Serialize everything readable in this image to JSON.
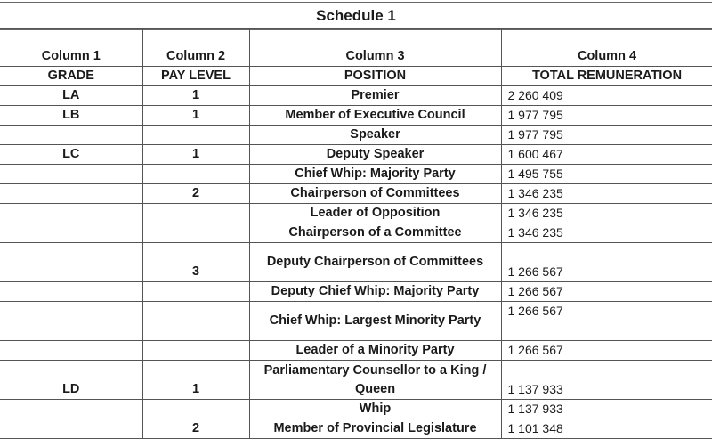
{
  "title": "Schedule 1",
  "headers": {
    "columns": [
      "Column 1",
      "Column 2",
      "Column 3",
      "Column 4"
    ],
    "labels": [
      "GRADE",
      "PAY LEVEL",
      "POSITION",
      "TOTAL REMUNERATION"
    ]
  },
  "rows": [
    {
      "grade": "LA",
      "pay_level": "1",
      "position": "Premier",
      "remuneration": "2 260  409"
    },
    {
      "grade": "LB",
      "pay_level": "1",
      "position": "Member of Executive Council",
      "remuneration": "1 977 795"
    },
    {
      "grade": "",
      "pay_level": "",
      "position": "Speaker",
      "remuneration": "1 977 795"
    },
    {
      "grade": "LC",
      "pay_level": "1",
      "position": "Deputy Speaker",
      "remuneration": "1 600 467"
    },
    {
      "grade": "",
      "pay_level": "",
      "position": "Chief Whip: Majority Party",
      "remuneration": "1 495 755"
    },
    {
      "grade": "",
      "pay_level": "2",
      "position": "Chairperson of Committees",
      "remuneration": "1 346 235"
    },
    {
      "grade": "",
      "pay_level": "",
      "position": "Leader of Opposition",
      "remuneration": "1 346 235"
    },
    {
      "grade": "",
      "pay_level": "",
      "position": "Chairperson of a Committee",
      "remuneration": "1 346 235"
    },
    {
      "grade": "",
      "pay_level": "3",
      "position": "Deputy Chairperson of Committees",
      "remuneration": "1 266 567"
    },
    {
      "grade": "",
      "pay_level": "",
      "position": "Deputy Chief Whip: Majority Party",
      "remuneration": "1 266 567"
    },
    {
      "grade": "",
      "pay_level": "",
      "position": "Chief Whip: Largest Minority Party",
      "remuneration": "1 266 567"
    },
    {
      "grade": "",
      "pay_level": "",
      "position": "Leader of a Minority Party",
      "remuneration": "1 266 567"
    },
    {
      "grade": "LD",
      "pay_level": "1",
      "position": "Parliamentary Counsellor to a King / Queen",
      "remuneration": "1 137 933"
    },
    {
      "grade": "",
      "pay_level": "",
      "position": "Whip",
      "remuneration": "1 137 933"
    },
    {
      "grade": "",
      "pay_level": "2",
      "position": "Member of Provincial Legislature",
      "remuneration": "1 101 348"
    }
  ]
}
